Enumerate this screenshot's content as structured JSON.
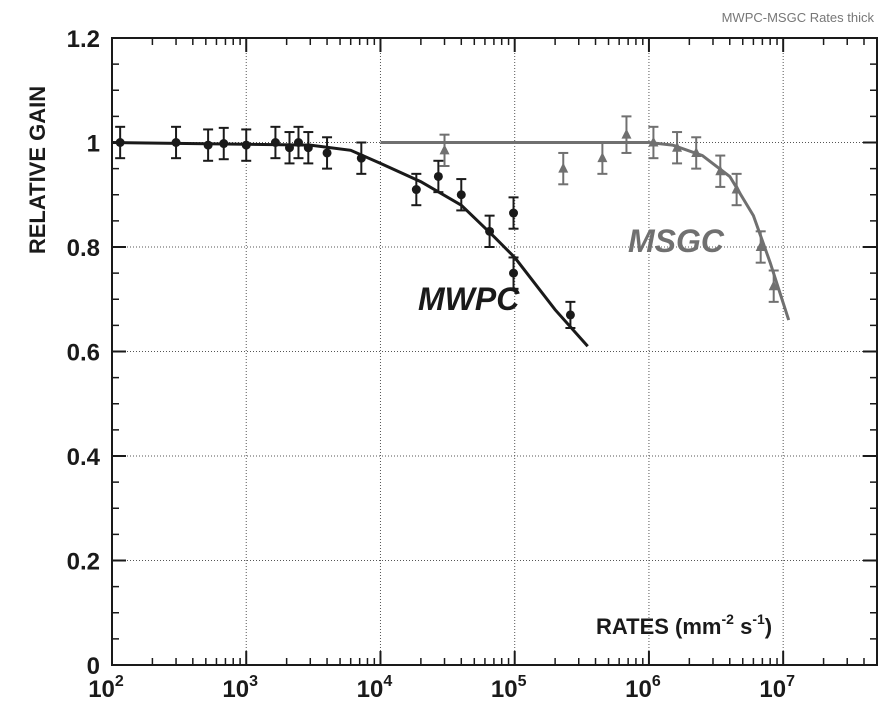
{
  "chart_data": {
    "type": "scatter",
    "title": "MWPC-MSGC Rates thick",
    "xlabel": "RATES (mm",
    "xlabel_sup1": "-2",
    "xlabel_mid": " s",
    "xlabel_sup2": "-1",
    "xlabel_end": ")",
    "ylabel": "RELATIVE GAIN",
    "x_scale": "log",
    "xlim": [
      100,
      50000000
    ],
    "ylim": [
      0,
      1.2
    ],
    "grid": true,
    "x_ticks": [
      {
        "base": "10",
        "exp": "2",
        "value": 100
      },
      {
        "base": "10",
        "exp": "3",
        "value": 1000
      },
      {
        "base": "10",
        "exp": "4",
        "value": 10000
      },
      {
        "base": "10",
        "exp": "5",
        "value": 100000
      },
      {
        "base": "10",
        "exp": "6",
        "value": 1000000
      },
      {
        "base": "10",
        "exp": "7",
        "value": 10000000
      }
    ],
    "y_ticks": [
      "0",
      "0.2",
      "0.4",
      "0.6",
      "0.8",
      "1",
      "1.2"
    ],
    "y_tick_values": [
      0,
      0.2,
      0.4,
      0.6,
      0.8,
      1.0,
      1.2
    ],
    "series": [
      {
        "name": "MWPC",
        "color": "#1a1a1a",
        "marker": "circle",
        "points": [
          {
            "x": 115,
            "y": 1.0,
            "err": 0.03
          },
          {
            "x": 300,
            "y": 1.0,
            "err": 0.03
          },
          {
            "x": 520,
            "y": 0.995,
            "err": 0.03
          },
          {
            "x": 680,
            "y": 0.998,
            "err": 0.03
          },
          {
            "x": 1000,
            "y": 0.995,
            "err": 0.03
          },
          {
            "x": 1650,
            "y": 1.0,
            "err": 0.03
          },
          {
            "x": 2100,
            "y": 0.99,
            "err": 0.03
          },
          {
            "x": 2450,
            "y": 1.0,
            "err": 0.03
          },
          {
            "x": 2900,
            "y": 0.99,
            "err": 0.03
          },
          {
            "x": 4000,
            "y": 0.98,
            "err": 0.03
          },
          {
            "x": 7200,
            "y": 0.97,
            "err": 0.03
          },
          {
            "x": 18500,
            "y": 0.91,
            "err": 0.03
          },
          {
            "x": 27000,
            "y": 0.935,
            "err": 0.03
          },
          {
            "x": 40000,
            "y": 0.9,
            "err": 0.03
          },
          {
            "x": 65000,
            "y": 0.83,
            "err": 0.03
          },
          {
            "x": 98000,
            "y": 0.865,
            "err": 0.03
          },
          {
            "x": 98000,
            "y": 0.75,
            "err": 0.03
          },
          {
            "x": 260000,
            "y": 0.67,
            "err": 0.025
          }
        ],
        "fit": [
          [
            100,
            1.0
          ],
          [
            3000,
            0.995
          ],
          [
            6000,
            0.985
          ],
          [
            10000,
            0.96
          ],
          [
            20000,
            0.925
          ],
          [
            40000,
            0.88
          ],
          [
            70000,
            0.82
          ],
          [
            100000,
            0.78
          ],
          [
            200000,
            0.68
          ],
          [
            350000,
            0.61
          ]
        ]
      },
      {
        "name": "MSGC",
        "color": "#707070",
        "marker": "triangle",
        "points": [
          {
            "x": 30000,
            "y": 0.985,
            "err": 0.03
          },
          {
            "x": 230000,
            "y": 0.95,
            "err": 0.03
          },
          {
            "x": 450000,
            "y": 0.97,
            "err": 0.03
          },
          {
            "x": 680000,
            "y": 1.015,
            "err": 0.035
          },
          {
            "x": 1080000,
            "y": 1.0,
            "err": 0.03
          },
          {
            "x": 1620000,
            "y": 0.99,
            "err": 0.03
          },
          {
            "x": 2250000,
            "y": 0.98,
            "err": 0.03
          },
          {
            "x": 3400000,
            "y": 0.945,
            "err": 0.03
          },
          {
            "x": 4500000,
            "y": 0.91,
            "err": 0.03
          },
          {
            "x": 6800000,
            "y": 0.8,
            "err": 0.03
          },
          {
            "x": 8500000,
            "y": 0.725,
            "err": 0.03
          }
        ],
        "fit": [
          [
            10000,
            1.0
          ],
          [
            1000000,
            1.0
          ],
          [
            1500000,
            0.995
          ],
          [
            2500000,
            0.975
          ],
          [
            4000000,
            0.935
          ],
          [
            6000000,
            0.86
          ],
          [
            8000000,
            0.77
          ],
          [
            11000000,
            0.66
          ]
        ]
      }
    ],
    "annotations": [
      {
        "text": "MWPC",
        "series": "MWPC"
      },
      {
        "text": "MSGC",
        "series": "MSGC"
      }
    ]
  }
}
